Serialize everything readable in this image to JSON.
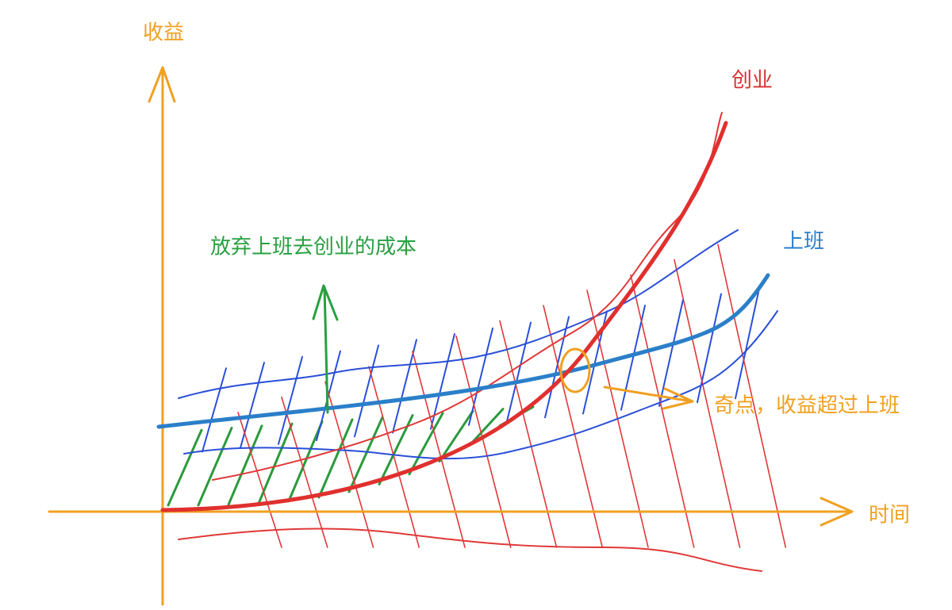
{
  "axes": {
    "y_label": "收益",
    "x_label": "时间"
  },
  "curves": {
    "startup": "创业",
    "job": "上班"
  },
  "annotations": {
    "cost": "放弃上班去创业的成本",
    "singularity": "奇点，收益超过上班"
  }
}
